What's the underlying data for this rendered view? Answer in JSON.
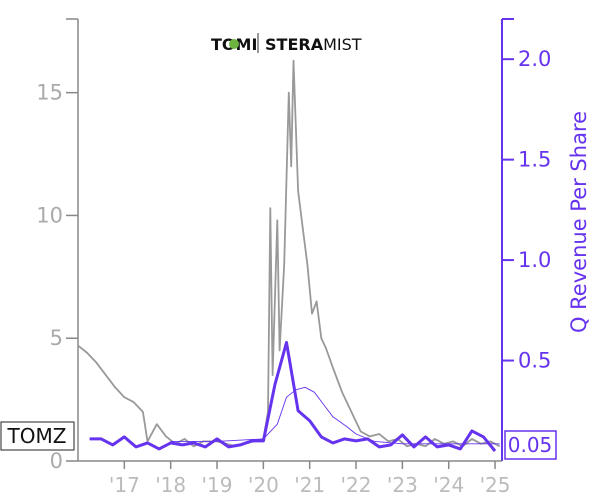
{
  "chart_data": {
    "type": "line",
    "ticker": "TOMZ",
    "logo": {
      "left_text": "TOMI",
      "right_text_bold": "STERA",
      "right_text": "MIST"
    },
    "ylabel_right": "Q Revenue Per Share",
    "current_value_label": "0.05",
    "x_tick_labels": [
      "'17",
      "'18",
      "'19",
      "'20",
      "'21",
      "'22",
      "'23",
      "'24",
      "'25"
    ],
    "x_range": [
      2016.0,
      2025.15
    ],
    "y_left": {
      "ticks": [
        0,
        5,
        10,
        15
      ],
      "range": [
        0,
        18
      ]
    },
    "y_right": {
      "ticks": [
        0.5,
        1.0,
        1.5,
        2.0
      ],
      "range": [
        0,
        2.2
      ],
      "tick_labels": [
        "0.5",
        "1.0",
        "1.5",
        "2.0"
      ]
    },
    "colors": {
      "price": "#999999",
      "revenue": "#6633ee",
      "axis": "#888888"
    },
    "series": [
      {
        "axis": "left",
        "values": [
          [
            2016.0,
            4.7
          ],
          [
            2016.2,
            4.4
          ],
          [
            2016.4,
            4.0
          ],
          [
            2016.6,
            3.5
          ],
          [
            2016.8,
            3.0
          ],
          [
            2017.0,
            2.6
          ],
          [
            2017.2,
            2.4
          ],
          [
            2017.4,
            2.0
          ],
          [
            2017.5,
            0.8
          ],
          [
            2017.7,
            1.5
          ],
          [
            2017.9,
            1.0
          ],
          [
            2018.1,
            0.7
          ],
          [
            2018.3,
            0.9
          ],
          [
            2018.5,
            0.6
          ],
          [
            2018.7,
            0.8
          ],
          [
            2019.0,
            0.8
          ],
          [
            2019.2,
            0.7
          ],
          [
            2019.4,
            0.6
          ],
          [
            2019.6,
            0.7
          ],
          [
            2019.8,
            0.8
          ],
          [
            2020.0,
            0.9
          ],
          [
            2020.1,
            2.0
          ],
          [
            2020.15,
            10.3
          ],
          [
            2020.2,
            3.5
          ],
          [
            2020.3,
            9.8
          ],
          [
            2020.35,
            4.5
          ],
          [
            2020.45,
            8.0
          ],
          [
            2020.55,
            15.0
          ],
          [
            2020.6,
            12.0
          ],
          [
            2020.65,
            16.3
          ],
          [
            2020.75,
            11.0
          ],
          [
            2020.85,
            9.5
          ],
          [
            2020.95,
            8.0
          ],
          [
            2021.05,
            6.0
          ],
          [
            2021.15,
            6.5
          ],
          [
            2021.25,
            5.0
          ],
          [
            2021.35,
            4.6
          ],
          [
            2021.5,
            3.8
          ],
          [
            2021.7,
            2.8
          ],
          [
            2021.9,
            2.0
          ],
          [
            2022.1,
            1.2
          ],
          [
            2022.3,
            1.0
          ],
          [
            2022.5,
            1.1
          ],
          [
            2022.7,
            0.8
          ],
          [
            2022.9,
            0.9
          ],
          [
            2023.1,
            0.6
          ],
          [
            2023.3,
            0.7
          ],
          [
            2023.5,
            0.6
          ],
          [
            2023.7,
            0.9
          ],
          [
            2023.9,
            0.7
          ],
          [
            2024.1,
            0.8
          ],
          [
            2024.3,
            0.6
          ],
          [
            2024.5,
            0.9
          ],
          [
            2024.7,
            0.7
          ],
          [
            2024.9,
            0.8
          ],
          [
            2025.1,
            0.6
          ]
        ]
      },
      {
        "axis": "left",
        "values": [
          [
            2018.0,
            0.8
          ],
          [
            2019.0,
            0.8
          ],
          [
            2020.0,
            0.9
          ],
          [
            2020.3,
            1.5
          ],
          [
            2020.5,
            2.6
          ],
          [
            2020.7,
            2.9
          ],
          [
            2020.9,
            3.0
          ],
          [
            2021.1,
            2.8
          ],
          [
            2021.3,
            2.3
          ],
          [
            2021.5,
            1.8
          ],
          [
            2021.8,
            1.4
          ],
          [
            2022.0,
            1.1
          ],
          [
            2022.4,
            0.8
          ],
          [
            2023.0,
            0.7
          ],
          [
            2024.0,
            0.7
          ],
          [
            2025.1,
            0.7
          ]
        ]
      },
      {
        "axis": "right",
        "values": [
          [
            2016.25,
            0.11
          ],
          [
            2016.5,
            0.11
          ],
          [
            2016.75,
            0.08
          ],
          [
            2017.0,
            0.12
          ],
          [
            2017.25,
            0.07
          ],
          [
            2017.5,
            0.09
          ],
          [
            2017.75,
            0.06
          ],
          [
            2018.0,
            0.09
          ],
          [
            2018.25,
            0.08
          ],
          [
            2018.5,
            0.09
          ],
          [
            2018.75,
            0.07
          ],
          [
            2019.0,
            0.11
          ],
          [
            2019.25,
            0.07
          ],
          [
            2019.5,
            0.08
          ],
          [
            2019.75,
            0.1
          ],
          [
            2020.0,
            0.1
          ],
          [
            2020.25,
            0.38
          ],
          [
            2020.5,
            0.59
          ],
          [
            2020.75,
            0.25
          ],
          [
            2021.0,
            0.2
          ],
          [
            2021.25,
            0.12
          ],
          [
            2021.5,
            0.09
          ],
          [
            2021.75,
            0.11
          ],
          [
            2022.0,
            0.1
          ],
          [
            2022.25,
            0.11
          ],
          [
            2022.5,
            0.07
          ],
          [
            2022.75,
            0.08
          ],
          [
            2023.0,
            0.13
          ],
          [
            2023.25,
            0.07
          ],
          [
            2023.5,
            0.12
          ],
          [
            2023.75,
            0.07
          ],
          [
            2024.0,
            0.08
          ],
          [
            2024.25,
            0.06
          ],
          [
            2024.5,
            0.15
          ],
          [
            2024.75,
            0.12
          ],
          [
            2025.0,
            0.05
          ]
        ]
      }
    ]
  }
}
